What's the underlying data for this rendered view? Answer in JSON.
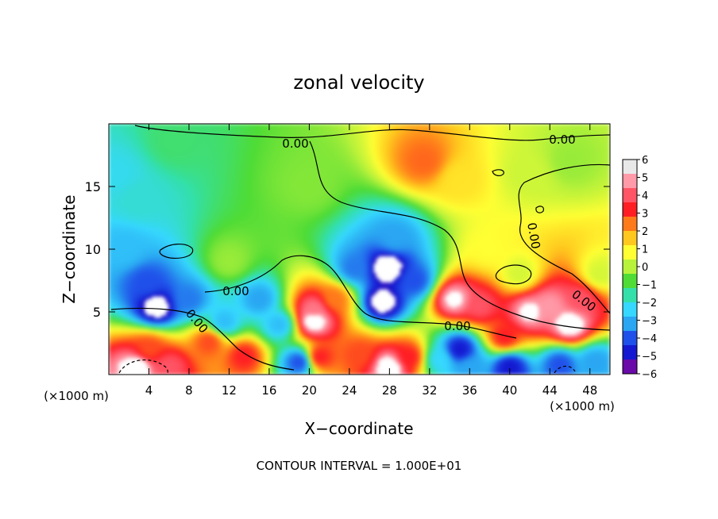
{
  "chart_data": {
    "type": "heatmap",
    "title": "zonal velocity",
    "xlabel": "X−coordinate",
    "ylabel": "Z−coordinate",
    "x_unit_left": "(×1000 m)",
    "x_unit_right": "(×1000 m)",
    "footer": "CONTOUR INTERVAL = 1.000E+01",
    "xlim": [
      0,
      50
    ],
    "ylim": [
      0,
      20
    ],
    "x_ticks": [
      4,
      8,
      12,
      16,
      20,
      24,
      28,
      32,
      36,
      40,
      44,
      48
    ],
    "x_tick_labels": [
      "4",
      "8",
      "12",
      "16",
      "20",
      "24",
      "28",
      "32",
      "36",
      "40",
      "44",
      "48"
    ],
    "y_ticks": [
      5,
      10,
      15
    ],
    "y_tick_labels": [
      "5",
      "10",
      "15"
    ],
    "colorbar": {
      "min": -6,
      "max": 6,
      "labels": [
        "6",
        "5",
        "4",
        "3",
        "2",
        "1",
        "0",
        "−1",
        "−2",
        "−3",
        "−4",
        "−5",
        "−6"
      ],
      "colors": [
        "#e8e8e8",
        "#ff9aa8",
        "#ff5566",
        "#ff1e24",
        "#ff7a1a",
        "#ffc81e",
        "#ffff33",
        "#b8f23a",
        "#4fdc36",
        "#33e0aa",
        "#36d8ff",
        "#2aa6f2",
        "#2050ea",
        "#1418d0",
        "#6a0aa8"
      ]
    },
    "contour_labels": [
      "0.00",
      "0.00",
      "0.00",
      "0.00",
      "0.00",
      "0.00",
      "0.00"
    ],
    "features": [
      {
        "x": 6.5,
        "z": 18.5,
        "value": -1.5
      },
      {
        "x": 3,
        "z": 14,
        "value": -2.5
      },
      {
        "x": 1.5,
        "z": 10,
        "value": -3.5
      },
      {
        "x": 0.8,
        "z": 16,
        "value": -2.8
      },
      {
        "x": 20,
        "z": 15,
        "value": -0.5
      },
      {
        "x": 31.5,
        "z": 17,
        "value": 3.2
      },
      {
        "x": 35,
        "z": 15.5,
        "value": 1.5
      },
      {
        "x": 42,
        "z": 16,
        "value": 0.3
      },
      {
        "x": 46,
        "z": 17,
        "value": -0.3
      },
      {
        "x": 12,
        "z": 9,
        "value": -0.3
      },
      {
        "x": 4.8,
        "z": 5.4,
        "value": -7
      },
      {
        "x": 3.8,
        "z": 7.3,
        "value": -5
      },
      {
        "x": 8,
        "z": 6,
        "value": -4.5
      },
      {
        "x": 11.5,
        "z": 4.2,
        "value": -3.5
      },
      {
        "x": 15,
        "z": 6,
        "value": -4
      },
      {
        "x": 17,
        "z": 4,
        "value": -3.5
      },
      {
        "x": 10,
        "z": 2.6,
        "value": 3.5
      },
      {
        "x": 4,
        "z": 2,
        "value": 3.5
      },
      {
        "x": 13.5,
        "z": 1.5,
        "value": 4
      },
      {
        "x": 2.8,
        "z": 0.6,
        "value": 7
      },
      {
        "x": 6,
        "z": 0.6,
        "value": 5
      },
      {
        "x": 20.5,
        "z": 4.3,
        "value": 7
      },
      {
        "x": 20.5,
        "z": 5.2,
        "value": 5.5
      },
      {
        "x": 22.5,
        "z": 6,
        "value": 3
      },
      {
        "x": 25,
        "z": 1.6,
        "value": 3.5
      },
      {
        "x": 19,
        "z": 1,
        "value": -5
      },
      {
        "x": 21,
        "z": 1.4,
        "value": 4
      },
      {
        "x": 27.8,
        "z": 8.5,
        "value": -7.5
      },
      {
        "x": 27.3,
        "z": 5.8,
        "value": -7
      },
      {
        "x": 24.5,
        "z": 8.5,
        "value": -4.5
      },
      {
        "x": 30.5,
        "z": 7.5,
        "value": -5
      },
      {
        "x": 28.5,
        "z": 10.8,
        "value": -4
      },
      {
        "x": 28,
        "z": 0.6,
        "value": 7
      },
      {
        "x": 30,
        "z": 1.4,
        "value": 4
      },
      {
        "x": 34.5,
        "z": 6,
        "value": 6.5
      },
      {
        "x": 37,
        "z": 5.5,
        "value": 5
      },
      {
        "x": 35,
        "z": 2,
        "value": -6
      },
      {
        "x": 33,
        "z": 1.2,
        "value": -3
      },
      {
        "x": 39.5,
        "z": 3,
        "value": 4
      },
      {
        "x": 42,
        "z": 5,
        "value": 6.5
      },
      {
        "x": 44,
        "z": 5.5,
        "value": 6
      },
      {
        "x": 46,
        "z": 4,
        "value": 7
      },
      {
        "x": 47,
        "z": 6,
        "value": 5
      },
      {
        "x": 40,
        "z": 0.6,
        "value": -6
      },
      {
        "x": 45,
        "z": 0.8,
        "value": -5
      },
      {
        "x": 48.5,
        "z": 1,
        "value": -4
      },
      {
        "x": 36,
        "z": 0.6,
        "value": -4
      },
      {
        "x": 41,
        "z": 8,
        "value": 0.4
      },
      {
        "x": 38,
        "z": 10,
        "value": 1
      },
      {
        "x": 49,
        "z": 8,
        "value": 0.4
      }
    ]
  }
}
